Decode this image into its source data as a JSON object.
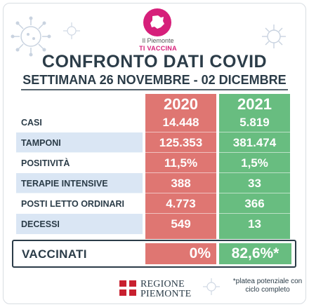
{
  "header": {
    "brand_line1": "Il Piemonte",
    "brand_line2": "TI VACCINA",
    "title": "CONFRONTO DATI COVID",
    "subtitle": "SETTIMANA 26 NOVEMBRE - 02 DICEMBRE"
  },
  "columns": {
    "year_a": "2020",
    "year_b": "2021"
  },
  "rows": [
    {
      "label": "CASI",
      "v2020": "14.448",
      "v2021": "5.819"
    },
    {
      "label": "TAMPONI",
      "v2020": "125.353",
      "v2021": "381.474"
    },
    {
      "label": "POSITIVITÀ",
      "v2020": "11,5%",
      "v2021": "1,5%"
    },
    {
      "label": "TERAPIE INTENSIVE",
      "v2020": "388",
      "v2021": "33"
    },
    {
      "label": "POSTI LETTO ORDINARI",
      "v2020": "4.773",
      "v2021": "366"
    },
    {
      "label": "DECESSI",
      "v2020": "549",
      "v2021": "13"
    }
  ],
  "vaccinated": {
    "label": "VACCINATI",
    "v2020": "0%",
    "v2021": "82,6%*"
  },
  "footer": {
    "region_line1": "REGIONE",
    "region_line2": "PIEMONTE",
    "footnote": "*platea potenziale con ciclo completo"
  },
  "colors": {
    "red": "#df7672",
    "green": "#68bd80",
    "label_bg_odd": "#ffffff",
    "label_bg_even": "#dae6f4",
    "text_dark": "#2b3c48",
    "brand_magenta": "#d61f7a"
  },
  "icons": [
    "virus-icon",
    "region-crest-icon",
    "piemonte-map-icon"
  ]
}
